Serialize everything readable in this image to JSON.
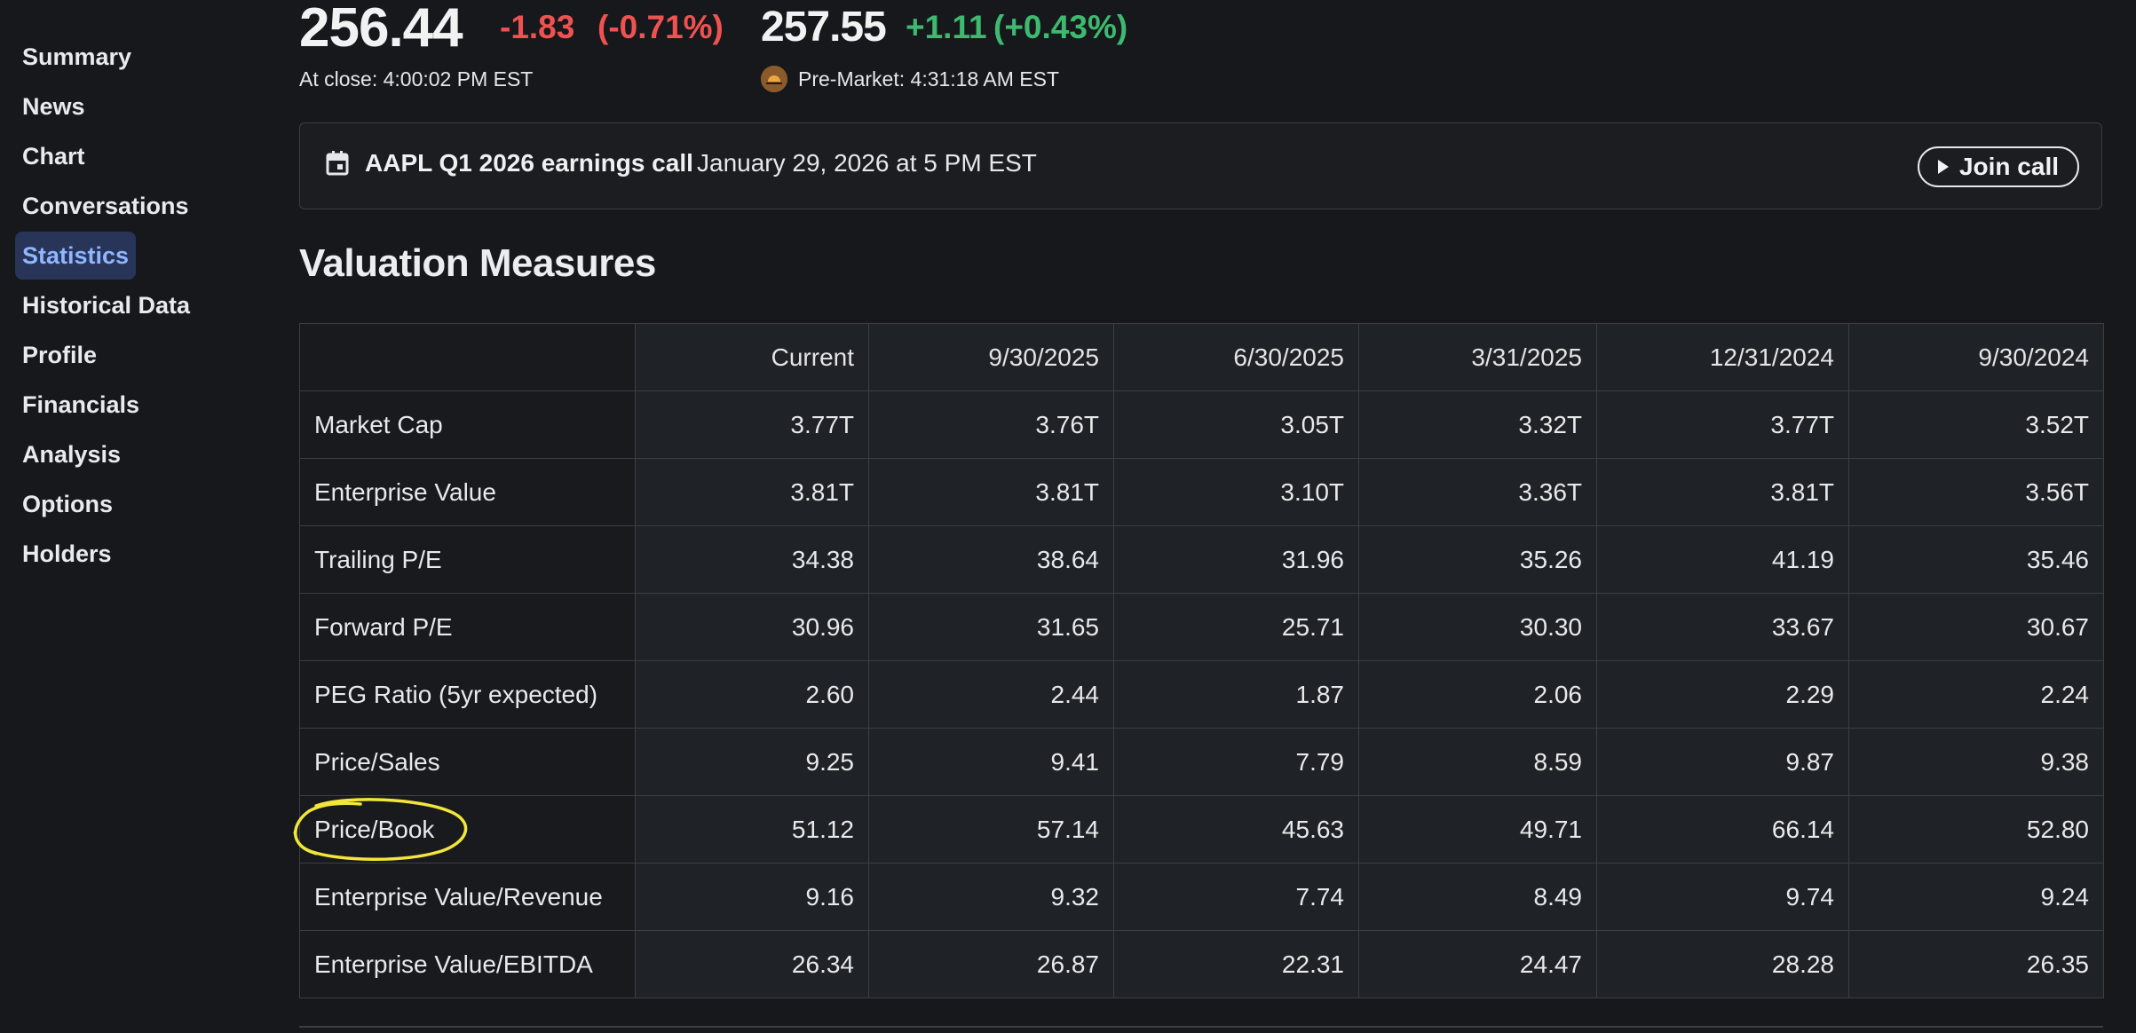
{
  "sidebar": {
    "items": [
      {
        "label": "Summary",
        "active": false
      },
      {
        "label": "News",
        "active": false
      },
      {
        "label": "Chart",
        "active": false
      },
      {
        "label": "Conversations",
        "active": false
      },
      {
        "label": "Statistics",
        "active": true
      },
      {
        "label": "Historical Data",
        "active": false
      },
      {
        "label": "Profile",
        "active": false
      },
      {
        "label": "Financials",
        "active": false
      },
      {
        "label": "Analysis",
        "active": false
      },
      {
        "label": "Options",
        "active": false
      },
      {
        "label": "Holders",
        "active": false
      }
    ]
  },
  "quote": {
    "close_price": "256.44",
    "close_change": "-1.83",
    "close_change_pct": "(-0.71%)",
    "close_time": "At close: 4:00:02 PM EST",
    "premarket_price": "257.55",
    "premarket_change": "+1.11",
    "premarket_change_pct": "(+0.43%)",
    "premarket_time": "Pre-Market: 4:31:18 AM EST",
    "premarket_icon": "sunrise-icon"
  },
  "banner": {
    "icon": "calendar-icon",
    "title": "AAPL Q1 2026 earnings call",
    "date": "January 29, 2026 at 5 PM EST",
    "button_label": "Join call",
    "button_icon": "play-icon"
  },
  "section": {
    "title": "Valuation Measures"
  },
  "table": {
    "columns": [
      "",
      "Current",
      "9/30/2025",
      "6/30/2025",
      "3/31/2025",
      "12/31/2024",
      "9/30/2024"
    ],
    "rows": [
      {
        "label": "Market Cap",
        "values": [
          "3.77T",
          "3.76T",
          "3.05T",
          "3.32T",
          "3.77T",
          "3.52T"
        ]
      },
      {
        "label": "Enterprise Value",
        "values": [
          "3.81T",
          "3.81T",
          "3.10T",
          "3.36T",
          "3.81T",
          "3.56T"
        ]
      },
      {
        "label": "Trailing P/E",
        "values": [
          "34.38",
          "38.64",
          "31.96",
          "35.26",
          "41.19",
          "35.46"
        ]
      },
      {
        "label": "Forward P/E",
        "values": [
          "30.96",
          "31.65",
          "25.71",
          "30.30",
          "33.67",
          "30.67"
        ]
      },
      {
        "label": "PEG Ratio (5yr expected)",
        "values": [
          "2.60",
          "2.44",
          "1.87",
          "2.06",
          "2.29",
          "2.24"
        ]
      },
      {
        "label": "Price/Sales",
        "values": [
          "9.25",
          "9.41",
          "7.79",
          "8.59",
          "9.87",
          "9.38"
        ]
      },
      {
        "label": "Price/Book",
        "values": [
          "51.12",
          "57.14",
          "45.63",
          "49.71",
          "66.14",
          "52.80"
        ]
      },
      {
        "label": "Enterprise Value/Revenue",
        "values": [
          "9.16",
          "9.32",
          "7.74",
          "8.49",
          "9.74",
          "9.24"
        ]
      },
      {
        "label": "Enterprise Value/EBITDA",
        "values": [
          "26.34",
          "26.87",
          "22.31",
          "24.47",
          "28.28",
          "26.35"
        ]
      }
    ]
  },
  "colors": {
    "negative": "#f05252",
    "positive": "#3dba6f",
    "active_nav_bg": "#283458",
    "active_nav_text": "#8fb6ff",
    "annotation": "#f3e63a"
  },
  "annotation": {
    "shape": "hand-drawn-circle",
    "target": "Price/Book"
  }
}
